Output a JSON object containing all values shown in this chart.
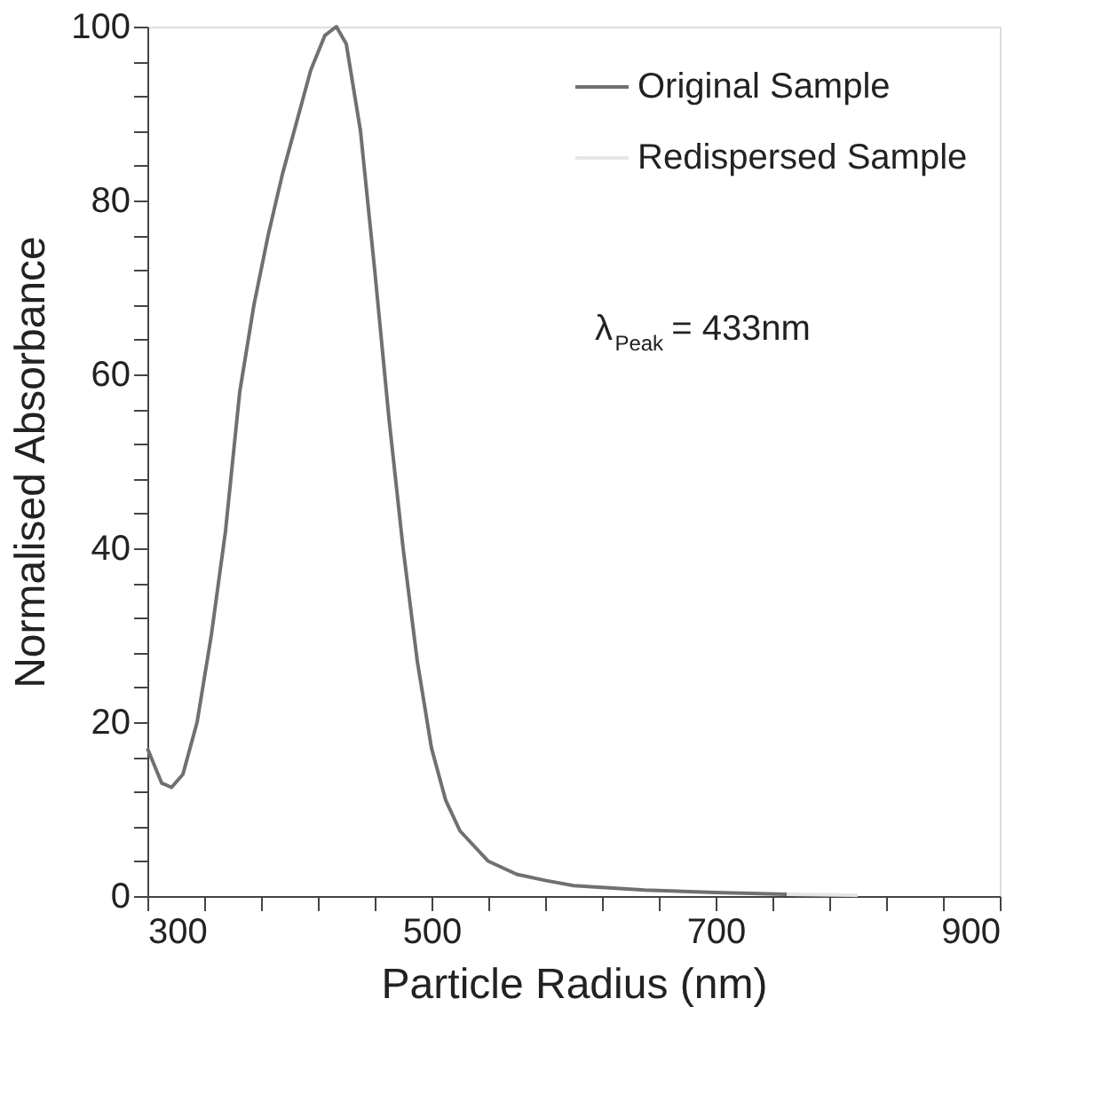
{
  "chart_data": {
    "type": "line",
    "xlabel": "Particle Radius (nm)",
    "ylabel": "Normalised Absorbance",
    "x": [
      300,
      310,
      317,
      325,
      335,
      345,
      355,
      365,
      375,
      385,
      395,
      405,
      415,
      425,
      433,
      440,
      450,
      460,
      470,
      480,
      490,
      500,
      510,
      520,
      540,
      560,
      580,
      600,
      650,
      700,
      750
    ],
    "series": [
      {
        "name": "Original Sample",
        "color": "#707070",
        "values": [
          17,
          13,
          12.5,
          14,
          20,
          30,
          42,
          58,
          68,
          76,
          83,
          89,
          95,
          99,
          100,
          98,
          88,
          72,
          55,
          40,
          27,
          17,
          11,
          7.5,
          4,
          2.5,
          1.8,
          1.2,
          0.7,
          0.4,
          0.2
        ]
      },
      {
        "name": "Redispersed Sample",
        "color": "#e6e6e6",
        "x": [
          750,
          775,
          800
        ],
        "values": [
          0.2,
          0.15,
          0.1
        ]
      }
    ],
    "xlim": [
      300,
      900
    ],
    "xticks": [
      300,
      {
        "value": 340,
        "label": null
      },
      {
        "value": 380,
        "label": null
      },
      {
        "value": 420,
        "label": null
      },
      {
        "value": 460,
        "label": null
      },
      500,
      {
        "value": 540,
        "label": null
      },
      {
        "value": 580,
        "label": null
      },
      {
        "value": 620,
        "label": null
      },
      {
        "value": 660,
        "label": null
      },
      700,
      {
        "value": 740,
        "label": null
      },
      {
        "value": 780,
        "label": null
      },
      {
        "value": 820,
        "label": null
      },
      {
        "value": 860,
        "label": null
      },
      900
    ],
    "ylim": [
      0,
      100
    ],
    "yticks": [
      0,
      {
        "value": 4,
        "label": null
      },
      {
        "value": 8,
        "label": null
      },
      {
        "value": 12,
        "label": null
      },
      {
        "value": 16,
        "label": null
      },
      20,
      {
        "value": 24,
        "label": null
      },
      {
        "value": 28,
        "label": null
      },
      {
        "value": 32,
        "label": null
      },
      {
        "value": 36,
        "label": null
      },
      40,
      {
        "value": 44,
        "label": null
      },
      {
        "value": 48,
        "label": null
      },
      {
        "value": 52,
        "label": null
      },
      {
        "value": 56,
        "label": null
      },
      60,
      {
        "value": 64,
        "label": null
      },
      {
        "value": 68,
        "label": null
      },
      {
        "value": 72,
        "label": null
      },
      {
        "value": 76,
        "label": null
      },
      80,
      {
        "value": 84,
        "label": null
      },
      {
        "value": 88,
        "label": null
      },
      {
        "value": 92,
        "label": null
      },
      {
        "value": 96,
        "label": null
      },
      100
    ],
    "annotations": [
      "λ$_{Peak}$ = 433nm"
    ],
    "grid": false,
    "legend": "top right",
    "marker": "none",
    "line_style": "solid"
  }
}
